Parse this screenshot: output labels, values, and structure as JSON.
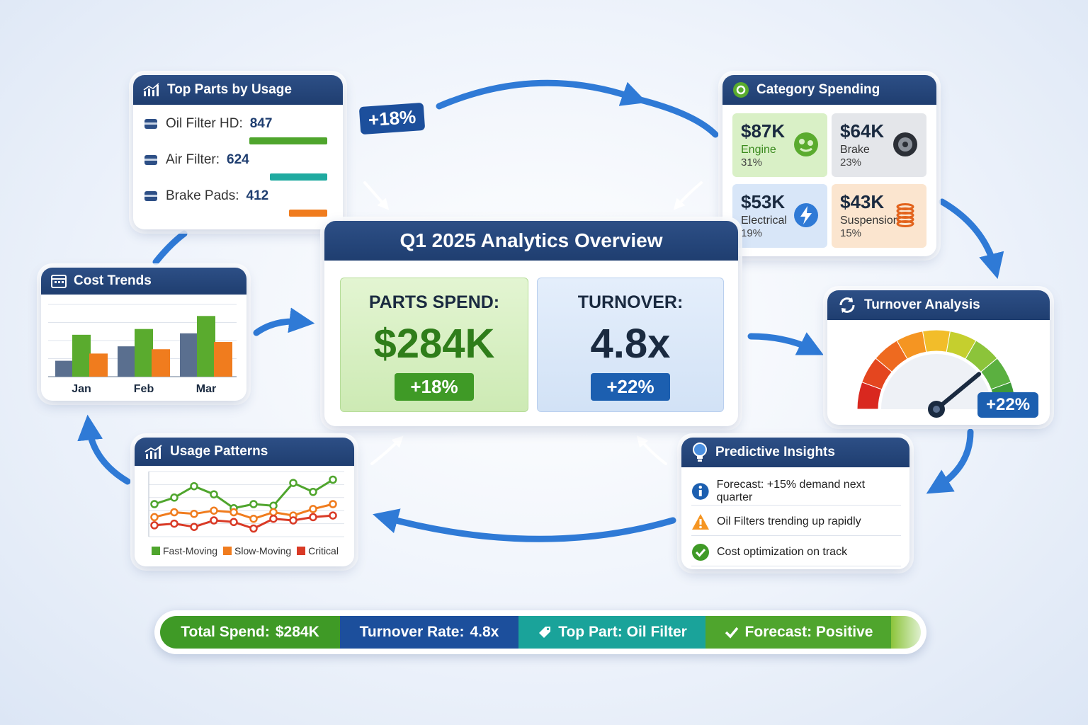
{
  "colors": {
    "header": "#1f3e70",
    "green": "#4fa52d",
    "blue": "#1f5fae",
    "teal": "#1faaa0",
    "orange": "#f07c1e",
    "arrow": "#2f7ad6"
  },
  "top_parts": {
    "title": "Top Parts by Usage",
    "icon": "bar-chart-icon",
    "items": [
      {
        "label": "Oil Filter HD:",
        "value": "847",
        "count": 847,
        "color": "#4fa52d",
        "icon": "oil-filter-icon"
      },
      {
        "label": "Air Filter:",
        "value": "624",
        "count": 624,
        "color": "#1faaa0",
        "icon": "air-filter-icon"
      },
      {
        "label": "Brake Pads:",
        "value": "412",
        "count": 412,
        "color": "#f07c1e",
        "icon": "brake-pad-icon"
      }
    ]
  },
  "growth_badge": "+18%",
  "category_spending": {
    "title": "Category Spending",
    "icon": "engine-icon",
    "tiles": [
      {
        "amount": "$87K",
        "name": "Engine",
        "pct": "31%",
        "bg": "#d9f0c6",
        "name_color": "#3a8a1e",
        "icon": "engine-gear-icon"
      },
      {
        "amount": "$64K",
        "name": "Brake",
        "pct": "23%",
        "bg": "#e4e6ea",
        "name_color": "#333333",
        "icon": "brake-disc-icon"
      },
      {
        "amount": "$53K",
        "name": "Electrical",
        "pct": "19%",
        "bg": "#d8e6f8",
        "name_color": "#333333",
        "icon": "lightning-icon"
      },
      {
        "amount": "$43K",
        "name": "Suspension",
        "pct": "15%",
        "bg": "#fbe5cf",
        "name_color": "#333333",
        "icon": "spring-icon"
      }
    ]
  },
  "overview": {
    "title": "Q1 2025 Analytics Overview",
    "parts_spend": {
      "label": "PARTS SPEND:",
      "value": "$284K",
      "change": "+18%"
    },
    "turnover": {
      "label": "TURNOVER:",
      "value": "4.8x",
      "change": "+22%"
    }
  },
  "cost_trends": {
    "title": "Cost Trends",
    "icon": "calendar-icon",
    "chart_data": {
      "type": "bar",
      "categories": [
        "Jan",
        "Feb",
        "Mar"
      ],
      "series": [
        {
          "values": [
            22,
            42,
            60
          ],
          "color": "#5a6f8f"
        },
        {
          "values": [
            58,
            66,
            84
          ],
          "color": "#5aab2e"
        },
        {
          "values": [
            32,
            38,
            48
          ],
          "color": "#f07c1e"
        }
      ],
      "ylim": [
        0,
        100
      ],
      "grid": true
    }
  },
  "turnover_analysis": {
    "title": "Turnover Analysis",
    "icon": "refresh-icon",
    "gauge_fraction": 0.78,
    "badge": "+22%"
  },
  "usage_patterns": {
    "title": "Usage Patterns",
    "icon": "line-chart-icon",
    "chart_data": {
      "type": "line",
      "x": [
        1,
        2,
        3,
        4,
        5,
        6,
        7,
        8,
        9,
        10
      ],
      "series": [
        {
          "name": "Fast-Moving",
          "color": "#4fa52d",
          "values": [
            40,
            48,
            62,
            52,
            35,
            40,
            38,
            66,
            55,
            70
          ]
        },
        {
          "name": "Slow-Moving",
          "color": "#f07c1e",
          "values": [
            24,
            30,
            28,
            32,
            30,
            22,
            30,
            26,
            34,
            40
          ]
        },
        {
          "name": "Critical",
          "color": "#d93a26",
          "values": [
            14,
            16,
            12,
            20,
            18,
            10,
            22,
            20,
            24,
            26
          ]
        }
      ],
      "ylim": [
        0,
        80
      ],
      "grid": true,
      "legend": "bottom"
    }
  },
  "predictive_insights": {
    "title": "Predictive Insights",
    "icon": "lightbulb-icon",
    "items": [
      {
        "text": "Forecast: +15% demand next quarter",
        "icon": "info-icon"
      },
      {
        "text": "Oil Filters trending up rapidly",
        "icon": "warning-icon"
      },
      {
        "text": "Cost optimization on track",
        "icon": "check-icon"
      }
    ]
  },
  "status_bar": {
    "segments": [
      {
        "label": "Total Spend:",
        "value": "$284K",
        "color": "#3f9a26",
        "icon": ""
      },
      {
        "label": "Turnover Rate:",
        "value": "4.8x",
        "color": "#1c4f9c",
        "icon": ""
      },
      {
        "label": "Top Part: Oil Filter",
        "value": "",
        "color": "#1aa39a",
        "icon": "tag-icon"
      },
      {
        "label": "Forecast: Positive",
        "value": "",
        "color": "#4fa52d",
        "icon": "check-icon"
      }
    ]
  }
}
